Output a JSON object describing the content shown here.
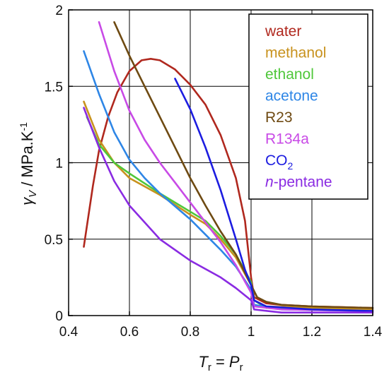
{
  "chart_data": {
    "type": "line",
    "xlabel": {
      "main": "T",
      "sub": "r",
      "eq": " = ",
      "main2": "P",
      "sub2": "r"
    },
    "ylabel": {
      "main": "γ",
      "sub": "V",
      "rest": " / MPa.K",
      "sup": "-1"
    },
    "xlim": [
      0.4,
      1.4
    ],
    "ylim": [
      0,
      2
    ],
    "x_ticks": [
      "0.4",
      "0.6",
      "0.8",
      "1",
      "1.2",
      "1.4"
    ],
    "y_ticks": [
      "0",
      "0.5",
      "1",
      "1.5",
      "2"
    ],
    "grid": true,
    "legend_position": "top-right",
    "series": [
      {
        "name": "water",
        "color": "#b0281e",
        "points": [
          [
            0.45,
            0.45
          ],
          [
            0.48,
            0.85
          ],
          [
            0.5,
            1.08
          ],
          [
            0.53,
            1.3
          ],
          [
            0.56,
            1.46
          ],
          [
            0.6,
            1.6
          ],
          [
            0.64,
            1.67
          ],
          [
            0.67,
            1.68
          ],
          [
            0.7,
            1.67
          ],
          [
            0.75,
            1.61
          ],
          [
            0.8,
            1.51
          ],
          [
            0.85,
            1.38
          ],
          [
            0.9,
            1.18
          ],
          [
            0.95,
            0.9
          ],
          [
            0.98,
            0.62
          ],
          [
            1.0,
            0.25
          ],
          [
            1.01,
            0.12
          ],
          [
            1.05,
            0.08
          ],
          [
            1.1,
            0.07
          ],
          [
            1.2,
            0.06
          ],
          [
            1.3,
            0.055
          ],
          [
            1.4,
            0.05
          ]
        ]
      },
      {
        "name": "methanol",
        "color": "#c8921e",
        "points": [
          [
            0.45,
            1.4
          ],
          [
            0.5,
            1.15
          ],
          [
            0.55,
            1.0
          ],
          [
            0.6,
            0.9
          ],
          [
            0.7,
            0.79
          ],
          [
            0.8,
            0.66
          ],
          [
            0.85,
            0.6
          ],
          [
            0.9,
            0.5
          ],
          [
            0.95,
            0.38
          ],
          [
            1.0,
            0.2
          ],
          [
            1.01,
            0.1
          ],
          [
            1.05,
            0.06
          ],
          [
            1.2,
            0.05
          ],
          [
            1.4,
            0.04
          ]
        ]
      },
      {
        "name": "ethanol",
        "color": "#4fc73a",
        "points": [
          [
            0.46,
            1.3
          ],
          [
            0.5,
            1.12
          ],
          [
            0.55,
            1.0
          ],
          [
            0.6,
            0.93
          ],
          [
            0.7,
            0.8
          ],
          [
            0.8,
            0.68
          ],
          [
            0.85,
            0.62
          ],
          [
            0.9,
            0.52
          ],
          [
            0.95,
            0.4
          ],
          [
            1.0,
            0.22
          ],
          [
            1.01,
            0.1
          ],
          [
            1.05,
            0.05
          ],
          [
            1.2,
            0.04
          ],
          [
            1.4,
            0.03
          ]
        ]
      },
      {
        "name": "acetone",
        "color": "#2e86e6",
        "points": [
          [
            0.45,
            1.73
          ],
          [
            0.5,
            1.45
          ],
          [
            0.55,
            1.2
          ],
          [
            0.6,
            1.02
          ],
          [
            0.65,
            0.9
          ],
          [
            0.7,
            0.8
          ],
          [
            0.8,
            0.63
          ],
          [
            0.9,
            0.43
          ],
          [
            0.95,
            0.32
          ],
          [
            1.0,
            0.17
          ],
          [
            1.01,
            0.07
          ],
          [
            1.1,
            0.04
          ],
          [
            1.4,
            0.03
          ]
        ]
      },
      {
        "name": "R23",
        "color": "#6e4a12",
        "points": [
          [
            0.55,
            1.92
          ],
          [
            0.6,
            1.7
          ],
          [
            0.65,
            1.5
          ],
          [
            0.7,
            1.3
          ],
          [
            0.75,
            1.1
          ],
          [
            0.8,
            0.9
          ],
          [
            0.85,
            0.72
          ],
          [
            0.9,
            0.55
          ],
          [
            0.95,
            0.4
          ],
          [
            1.0,
            0.2
          ],
          [
            1.02,
            0.12
          ],
          [
            1.05,
            0.09
          ],
          [
            1.1,
            0.07
          ],
          [
            1.2,
            0.06
          ],
          [
            1.4,
            0.05
          ]
        ]
      },
      {
        "name": "R134a",
        "color": "#c84ae6",
        "points": [
          [
            0.5,
            1.92
          ],
          [
            0.55,
            1.6
          ],
          [
            0.6,
            1.34
          ],
          [
            0.65,
            1.15
          ],
          [
            0.7,
            1.0
          ],
          [
            0.75,
            0.87
          ],
          [
            0.8,
            0.74
          ],
          [
            0.9,
            0.48
          ],
          [
            0.95,
            0.33
          ],
          [
            1.0,
            0.15
          ],
          [
            1.01,
            0.06
          ],
          [
            1.1,
            0.04
          ],
          [
            1.4,
            0.03
          ]
        ]
      },
      {
        "name": "CO2",
        "color": "#1c1ce0",
        "points": [
          [
            0.75,
            1.55
          ],
          [
            0.8,
            1.35
          ],
          [
            0.85,
            1.1
          ],
          [
            0.9,
            0.82
          ],
          [
            0.95,
            0.5
          ],
          [
            0.98,
            0.3
          ],
          [
            1.0,
            0.2
          ],
          [
            1.01,
            0.1
          ],
          [
            1.05,
            0.06
          ],
          [
            1.2,
            0.04
          ],
          [
            1.4,
            0.03
          ]
        ]
      },
      {
        "name": "n-pentane",
        "color": "#8a2be2",
        "points": [
          [
            0.45,
            1.36
          ],
          [
            0.5,
            1.1
          ],
          [
            0.55,
            0.88
          ],
          [
            0.6,
            0.72
          ],
          [
            0.7,
            0.5
          ],
          [
            0.8,
            0.36
          ],
          [
            0.9,
            0.25
          ],
          [
            0.95,
            0.18
          ],
          [
            1.0,
            0.1
          ],
          [
            1.01,
            0.04
          ],
          [
            1.1,
            0.02
          ],
          [
            1.4,
            0.02
          ]
        ]
      }
    ],
    "legend": [
      {
        "main": "water",
        "color": "#b0281e"
      },
      {
        "main": "methanol",
        "color": "#c8921e"
      },
      {
        "main": "ethanol",
        "color": "#4fc73a"
      },
      {
        "main": "acetone",
        "color": "#2e86e6"
      },
      {
        "main": "R23",
        "color": "#6e4a12"
      },
      {
        "main": "R134a",
        "color": "#c84ae6"
      },
      {
        "main": "CO",
        "sub": "2",
        "color": "#1c1ce0"
      },
      {
        "prefix": "n",
        "main": "-pentane",
        "color": "#8a2be2"
      }
    ]
  }
}
